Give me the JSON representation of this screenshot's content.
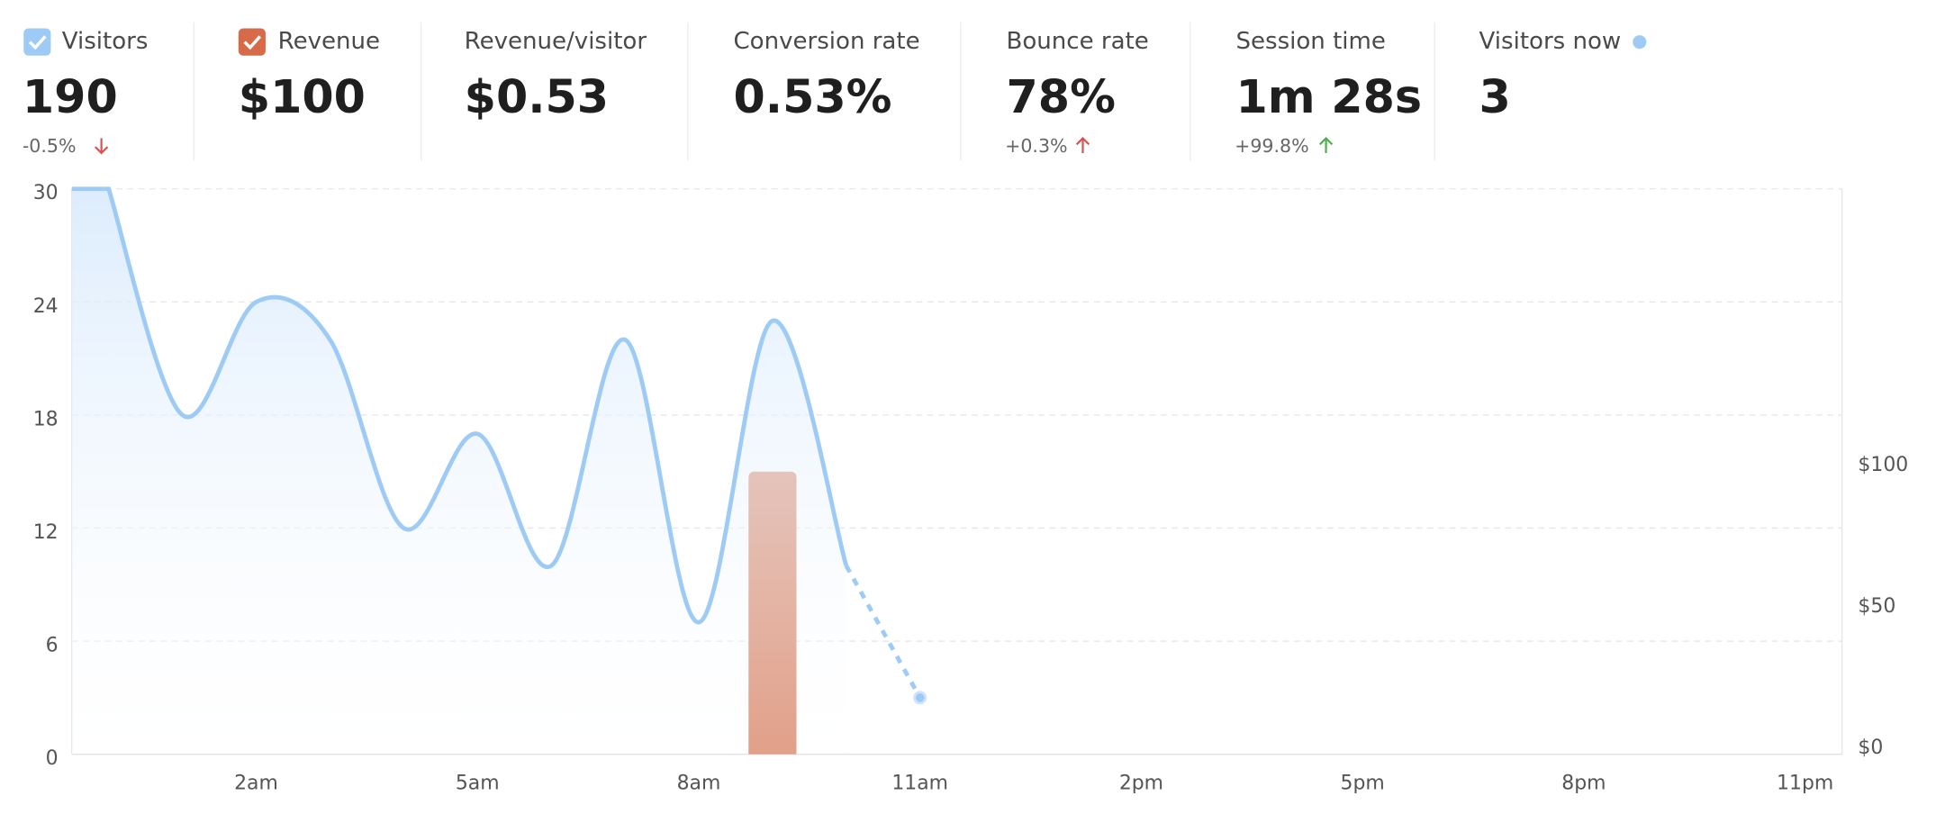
{
  "metrics": [
    {
      "label": "Visitors",
      "value": "190",
      "change": "-0.5%"
    },
    {
      "label": "Revenue",
      "value": "$100"
    },
    {
      "label": "Revenue/visitor",
      "value": "$0.53"
    },
    {
      "label": "Conversion rate",
      "value": "0.53%"
    },
    {
      "label": "Bounce rate",
      "value": "78%",
      "change": "+0.3%"
    },
    {
      "label": "Session time",
      "value": "1m 28s",
      "change": "+99.8%"
    },
    {
      "label": "Visitors now",
      "value": "3"
    }
  ],
  "chart_data": {
    "type": "line-bar",
    "categories": [
      null,
      null,
      "2am",
      null,
      null,
      "5am",
      null,
      null,
      "8am",
      null,
      null,
      "11am",
      null,
      null,
      "2pm",
      null,
      null,
      "5pm",
      null,
      null,
      "8pm",
      null,
      null,
      "11pm"
    ],
    "series": [
      {
        "name": "Visitors",
        "color": "#9ecbf5",
        "type": "line",
        "incomplete_last": true,
        "values": [
          30,
          18,
          24,
          22,
          12,
          17,
          10,
          22,
          7,
          23,
          10,
          3,
          null,
          null,
          null,
          null,
          null,
          null,
          null,
          null,
          null,
          null,
          null,
          null
        ]
      },
      {
        "name": "Revenue",
        "color": "#d9886c",
        "type": "bar",
        "axis": "y2",
        "values": [
          null,
          null,
          null,
          null,
          null,
          null,
          null,
          null,
          null,
          100,
          null,
          null,
          null,
          null,
          null,
          null,
          null,
          null,
          null,
          null,
          null,
          null,
          null,
          null
        ]
      }
    ],
    "ylim": [
      0,
      30
    ],
    "yticks": [
      0,
      6,
      12,
      18,
      24,
      30
    ],
    "y2lim": [
      0,
      200
    ],
    "y2ticks": [
      {
        "value": 0,
        "label": "$0"
      },
      {
        "value": 50,
        "label": "$50"
      },
      {
        "value": 100,
        "label": "$100"
      }
    ],
    "grid": true
  }
}
